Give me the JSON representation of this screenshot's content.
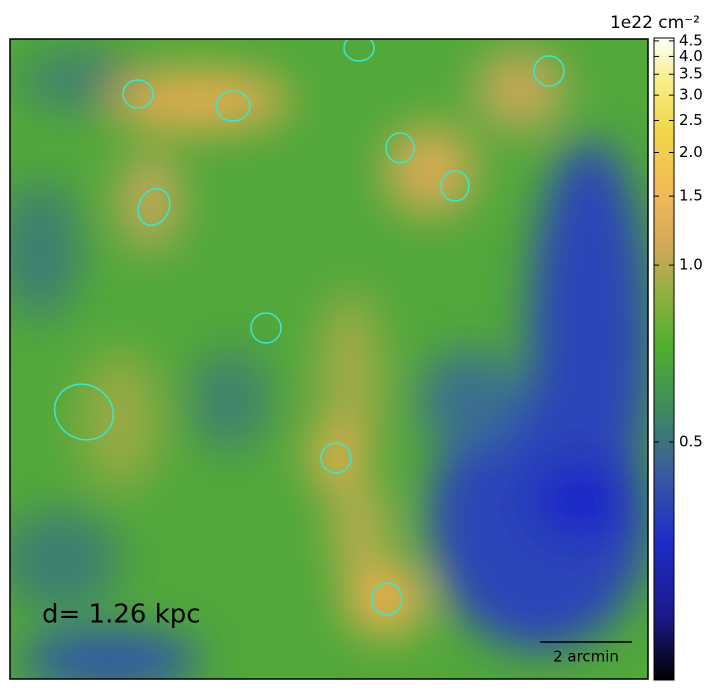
{
  "chart_data": {
    "type": "image-map",
    "colorbar_label": "1e22 cm⁻²",
    "annotation": "d= 1.26 kpc",
    "scale_bar_label": "2 arcmin",
    "clim": [
      0.37,
      4.6
    ],
    "stretch": "log",
    "stretch_a": 200,
    "cticks": [
      4.5,
      {
        "value": 4,
        "label": "4.0"
      },
      3.5,
      {
        "value": 3,
        "label": "3.0"
      },
      2.5,
      {
        "value": 2,
        "label": "2.0"
      },
      1.5,
      {
        "value": 1,
        "label": "1.0"
      },
      0.5
    ]
  }
}
